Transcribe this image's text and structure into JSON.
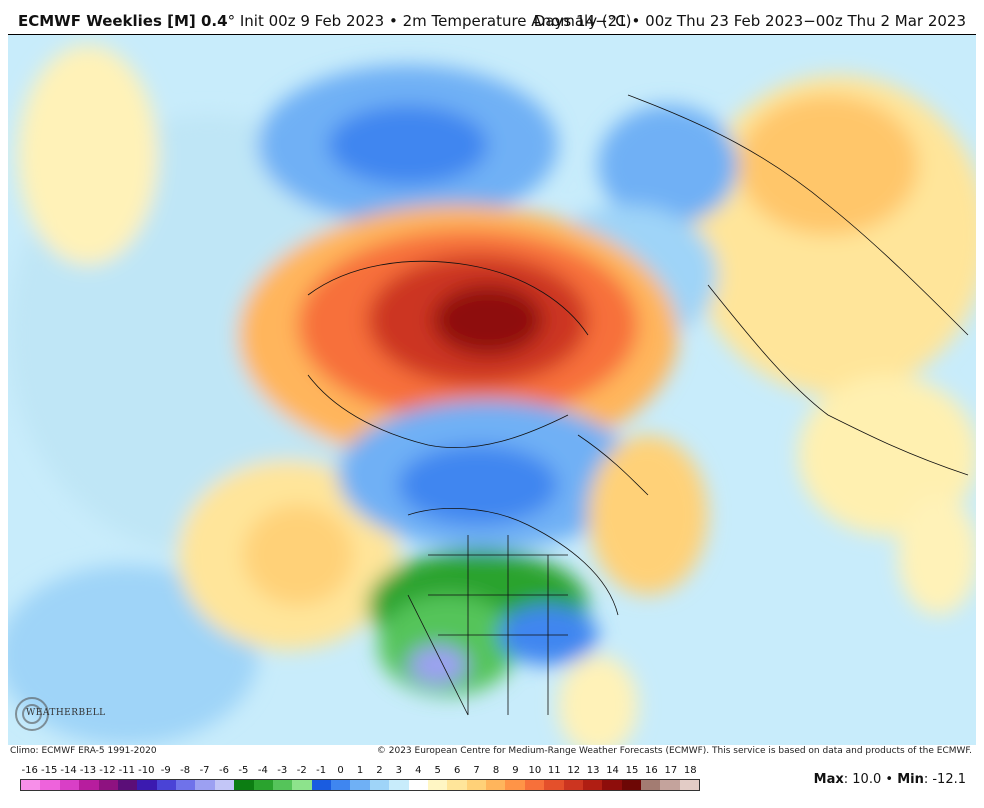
{
  "header": {
    "model": "ECMWF Weeklies [M] 0.4",
    "degree": "°",
    "init": "Init 00z 9 Feb 2023",
    "bullet": "•",
    "field": "2m Temperature Anomaly (°C)",
    "days": "Days 14−21",
    "valid": "00z Thu 23 Feb 2023−00z Thu 2 Mar 2023"
  },
  "footer": {
    "climo": "Climo: ECMWF ERA-5 1991-2020",
    "copyright": "© 2023 European Centre for Medium-Range Weather Forecasts (ECMWF). This service is based on data and products of the ECMWF."
  },
  "logo": {
    "text": "WEATHERBELL"
  },
  "stats": {
    "max_label": "Max",
    "max_value": ": 10.0",
    "bullet": "•",
    "min_label": "Min",
    "min_value": ": -12.1"
  },
  "colorbar": {
    "labels": [
      "-16",
      "-15",
      "-14",
      "-13",
      "-12",
      "-11",
      "-10",
      "-9",
      "-8",
      "-7",
      "-6",
      "-5",
      "-4",
      "-3",
      "-2",
      "-1",
      "0",
      "1",
      "2",
      "3",
      "4",
      "5",
      "6",
      "7",
      "8",
      "9",
      "10",
      "11",
      "12",
      "13",
      "14",
      "15",
      "16",
      "17",
      "18"
    ],
    "colors": [
      "#f78fe9",
      "#ee63dc",
      "#d93fc6",
      "#b71d9e",
      "#8e1280",
      "#5b0e78",
      "#3b1ab0",
      "#4a43d6",
      "#6f72ea",
      "#9ca0f2",
      "#c3c6f7",
      "#0c7d12",
      "#2aa32e",
      "#55c45a",
      "#8de38c",
      "#1a5ce0",
      "#3f86f0",
      "#6fb0f5",
      "#9fd4f8",
      "#c8ecfb",
      "#ffffff",
      "#fff6c4",
      "#ffe59a",
      "#ffd178",
      "#ffb55c",
      "#ff9447",
      "#f7703a",
      "#e4502b",
      "#cc3520",
      "#b01e13",
      "#8e0d0b",
      "#6d0705",
      "#a37c72",
      "#c4a39c",
      "#e3ccc6"
    ]
  }
}
